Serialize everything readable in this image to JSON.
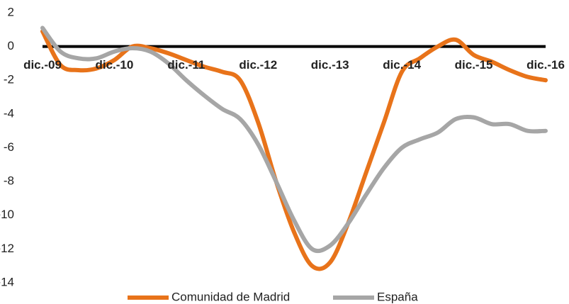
{
  "chart_data": {
    "type": "line",
    "categories": [
      "dic.-09",
      null,
      null,
      null,
      "dic.-10",
      null,
      null,
      null,
      "dic.-11",
      null,
      null,
      null,
      "dic.-12",
      null,
      null,
      null,
      "dic.-13",
      null,
      null,
      null,
      "dic.-14",
      null,
      null,
      null,
      "dic.-15",
      null,
      null,
      null,
      "dic.-16"
    ],
    "series": [
      {
        "name": "Comunidad de Madrid",
        "color": "#e8731a",
        "values": [
          0.9,
          -1.1,
          -1.4,
          -1.3,
          -0.8,
          0.0,
          -0.1,
          -0.4,
          -0.8,
          -1.2,
          -1.5,
          -2.0,
          -4.5,
          -8,
          -11,
          -13,
          -12.8,
          -10.5,
          -7.5,
          -4.5,
          -1.5,
          -0.7,
          0.0,
          0.4,
          -0.5,
          -0.9,
          -1.4,
          -1.8,
          -2.0
        ]
      },
      {
        "name": "España",
        "color": "#a6a6a6",
        "values": [
          1.1,
          -0.3,
          -0.7,
          -0.7,
          -0.3,
          -0.1,
          -0.3,
          -1.0,
          -2.0,
          -2.9,
          -3.7,
          -4.3,
          -5.8,
          -8,
          -10.3,
          -12.0,
          -11.8,
          -10.5,
          -8.8,
          -7.2,
          -6.0,
          -5.5,
          -5.1,
          -4.3,
          -4.2,
          -4.6,
          -4.6,
          -5.0,
          -5.0
        ]
      }
    ],
    "ylim": [
      -14,
      2
    ],
    "yticks": [
      -14,
      -12,
      -10,
      -8,
      -6,
      -4,
      -2,
      0,
      2
    ],
    "grid": false,
    "legend": "bottom"
  }
}
